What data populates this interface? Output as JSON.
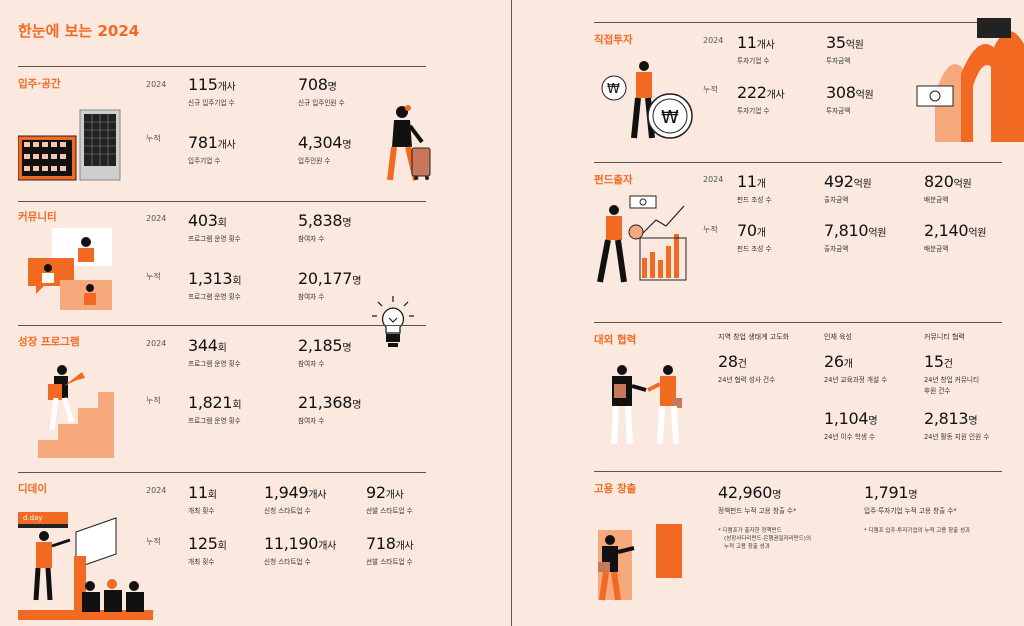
{
  "page_title": "한눈에 보는 2024",
  "left": {
    "s1": {
      "title": "입주·공간",
      "year": "2024",
      "cum": "누적",
      "stats": [
        {
          "num": "115",
          "unit": "개사",
          "label": "신규 입주기업 수"
        },
        {
          "num": "708",
          "unit": "명",
          "label": "신규 입주인원 수"
        },
        {
          "num": "781",
          "unit": "개사",
          "label": "입주기업 수"
        },
        {
          "num": "4,304",
          "unit": "명",
          "label": "입주인원 수"
        }
      ]
    },
    "s2": {
      "title": "커뮤니티",
      "year": "2024",
      "cum": "누적",
      "stats": [
        {
          "num": "403",
          "unit": "회",
          "label": "프로그램 운영 횟수"
        },
        {
          "num": "5,838",
          "unit": "명",
          "label": "참여자 수"
        },
        {
          "num": "1,313",
          "unit": "회",
          "label": "프로그램 운영 횟수"
        },
        {
          "num": "20,177",
          "unit": "명",
          "label": "참여자 수"
        }
      ]
    },
    "s3": {
      "title": "성장 프로그램",
      "year": "2024",
      "cum": "누적",
      "stats": [
        {
          "num": "344",
          "unit": "회",
          "label": "프로그램 운영 횟수"
        },
        {
          "num": "2,185",
          "unit": "명",
          "label": "참여자 수"
        },
        {
          "num": "1,821",
          "unit": "회",
          "label": "프로그램 운영 횟수"
        },
        {
          "num": "21,368",
          "unit": "명",
          "label": "참여자 수"
        }
      ]
    },
    "s4": {
      "title": "디데이",
      "year": "2024",
      "cum": "누적",
      "sign": "d.day",
      "stats": [
        {
          "num": "11",
          "unit": "회",
          "label": "개최 횟수"
        },
        {
          "num": "1,949",
          "unit": "개사",
          "label": "신청 스타트업 수"
        },
        {
          "num": "92",
          "unit": "개사",
          "label": "선발 스타트업 수"
        },
        {
          "num": "125",
          "unit": "회",
          "label": "개최 횟수"
        },
        {
          "num": "11,190",
          "unit": "개사",
          "label": "신청 스타트업 수"
        },
        {
          "num": "718",
          "unit": "개사",
          "label": "선발 스타트업 수"
        }
      ]
    }
  },
  "right": {
    "r1": {
      "title": "직접투자",
      "year": "2024",
      "cum": "누적",
      "stats": [
        {
          "num": "11",
          "unit": "개사",
          "label": "투자기업 수"
        },
        {
          "num": "35",
          "unit": "억원",
          "label": "투자금액"
        },
        {
          "num": "222",
          "unit": "개사",
          "label": "투자기업 수"
        },
        {
          "num": "308",
          "unit": "억원",
          "label": "투자금액"
        }
      ]
    },
    "r2": {
      "title": "펀드출자",
      "year": "2024",
      "cum": "누적",
      "stats": [
        {
          "num": "11",
          "unit": "개",
          "label": "펀드 조성 수"
        },
        {
          "num": "492",
          "unit": "억원",
          "label": "출자금액"
        },
        {
          "num": "820",
          "unit": "억원",
          "label": "배분금액"
        },
        {
          "num": "70",
          "unit": "개",
          "label": "펀드 조성 수"
        },
        {
          "num": "7,810",
          "unit": "억원",
          "label": "출자금액"
        },
        {
          "num": "2,140",
          "unit": "억원",
          "label": "배분금액"
        }
      ]
    },
    "r3": {
      "title": "대외 협력",
      "headers": [
        "지역 창업 생태계 고도화",
        "인재 육성",
        "커뮤니티 협력"
      ],
      "stats": [
        {
          "num": "28",
          "unit": "건",
          "label": "24년 협력 성사 건수"
        },
        {
          "num": "26",
          "unit": "개",
          "label": "24년 교육과정 개설 수"
        },
        {
          "num": "15",
          "unit": "건",
          "label": "24년 창업 커뮤니티",
          "label2": "후원 건수"
        },
        {
          "num": "1,104",
          "unit": "명",
          "label": "24년 이수 학생 수"
        },
        {
          "num": "2,813",
          "unit": "명",
          "label": "24년 활동 지원 인원 수"
        }
      ]
    },
    "r4": {
      "title": "고용 창출",
      "stats": [
        {
          "num": "42,960",
          "unit": "명",
          "label": "정책펀드 누적 고용 창출 수*"
        },
        {
          "num": "1,791",
          "unit": "명",
          "label": "입주·투자기업 누적 고용 창출 수*"
        }
      ],
      "note1": [
        "* 디캠프가 출자한 정책펀드",
        "(성장사다리펀드·은행권일자리펀드)의",
        "누적 고용 창출 성과"
      ],
      "note2": "* 디캠프 입주·투자기업의 누적 고용 창출 성과"
    }
  }
}
